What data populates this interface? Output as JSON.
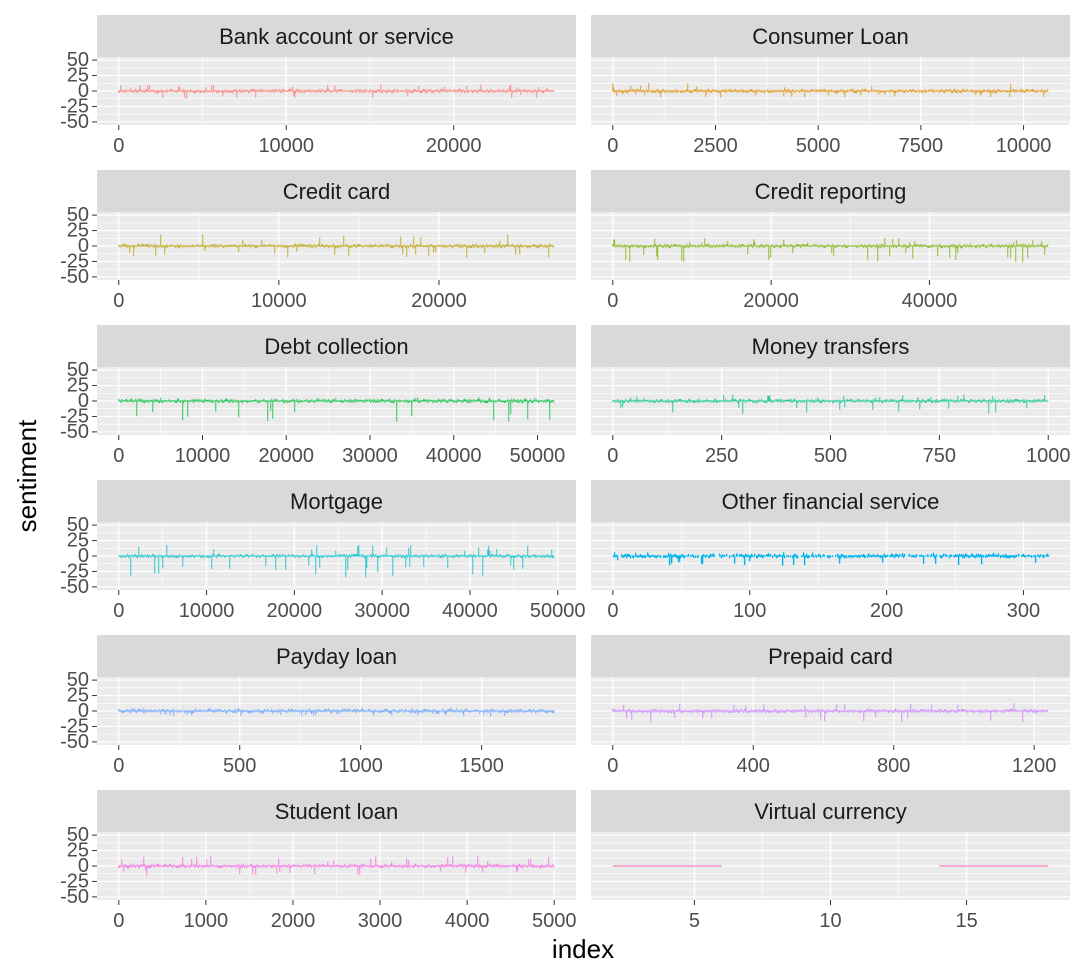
{
  "chart_data": {
    "type": "bar",
    "layout": "facet-wrap",
    "facet_columns": 2,
    "xlabel": "index",
    "ylabel": "sentiment",
    "shared_y_axis": true,
    "ylim": [
      -55,
      55
    ],
    "y_ticks": [
      50,
      25,
      0,
      -25,
      -50
    ],
    "y_tick_labels": [
      "50",
      "25",
      "0",
      "-25",
      "-50"
    ],
    "grid": true,
    "panel_background": "#ebebeb",
    "strip_background": "#d9d9d9",
    "panels": [
      {
        "name": "Bank account or service",
        "color": "#F8766D",
        "xlim": [
          -1300,
          27300
        ],
        "x_ticks": [
          0,
          10000,
          20000
        ],
        "x_tick_labels": [
          "0",
          "10000",
          "20000"
        ],
        "n": 26000,
        "approx_sentiment_range": [
          -12,
          10
        ]
      },
      {
        "name": "Consumer Loan",
        "color": "#DE8C00",
        "xlim": [
          -530,
          11130
        ],
        "x_ticks": [
          0,
          2500,
          5000,
          7500,
          10000
        ],
        "x_tick_labels": [
          "0",
          "2500",
          "5000",
          "7500",
          "10000"
        ],
        "n": 10600,
        "approx_sentiment_range": [
          -10,
          12
        ]
      },
      {
        "name": "Credit card",
        "color": "#B79F00",
        "xlim": [
          -1360,
          28560
        ],
        "x_ticks": [
          0,
          10000,
          20000
        ],
        "x_tick_labels": [
          "0",
          "10000",
          "20000"
        ],
        "n": 27200,
        "approx_sentiment_range": [
          -18,
          18
        ]
      },
      {
        "name": "Credit reporting",
        "color": "#7CAE00",
        "xlim": [
          -2750,
          57750
        ],
        "x_ticks": [
          0,
          20000,
          40000
        ],
        "x_tick_labels": [
          "0",
          "20000",
          "40000"
        ],
        "n": 55000,
        "approx_sentiment_range": [
          -25,
          12
        ]
      },
      {
        "name": "Debt collection",
        "color": "#00BA38",
        "xlim": [
          -2600,
          54600
        ],
        "x_ticks": [
          0,
          10000,
          20000,
          30000,
          40000,
          50000
        ],
        "x_tick_labels": [
          "0",
          "10000",
          "20000",
          "30000",
          "40000",
          "50000"
        ],
        "n": 52000,
        "approx_sentiment_range": [
          -35,
          5
        ]
      },
      {
        "name": "Money transfers",
        "color": "#00C08B",
        "xlim": [
          -50,
          1050
        ],
        "x_ticks": [
          0,
          250,
          500,
          750,
          1000
        ],
        "x_tick_labels": [
          "0",
          "250",
          "500",
          "750",
          "1000"
        ],
        "n": 1000,
        "approx_sentiment_range": [
          -20,
          10
        ]
      },
      {
        "name": "Mortgage",
        "color": "#00BFC4",
        "xlim": [
          -2480,
          52080
        ],
        "x_ticks": [
          0,
          10000,
          20000,
          30000,
          40000,
          50000
        ],
        "x_tick_labels": [
          "0",
          "10000",
          "20000",
          "30000",
          "40000",
          "50000"
        ],
        "n": 49600,
        "approx_sentiment_range": [
          -35,
          18
        ]
      },
      {
        "name": "Other financial service",
        "color": "#00B4F0",
        "xlim": [
          -16,
          334
        ],
        "x_ticks": [
          0,
          100,
          200,
          300
        ],
        "x_tick_labels": [
          "0",
          "100",
          "200",
          "300"
        ],
        "n": 318,
        "approx_sentiment_range": [
          -15,
          5
        ]
      },
      {
        "name": "Payday loan",
        "color": "#619CFF",
        "xlim": [
          -90,
          1890
        ],
        "x_ticks": [
          0,
          500,
          1000,
          1500
        ],
        "x_tick_labels": [
          "0",
          "500",
          "1000",
          "1500"
        ],
        "n": 1800,
        "approx_sentiment_range": [
          -8,
          5
        ]
      },
      {
        "name": "Prepaid card",
        "color": "#C77CFF",
        "xlim": [
          -62,
          1302
        ],
        "x_ticks": [
          0,
          400,
          800,
          1200
        ],
        "x_tick_labels": [
          "0",
          "400",
          "800",
          "1200"
        ],
        "n": 1240,
        "approx_sentiment_range": [
          -20,
          12
        ]
      },
      {
        "name": "Student loan",
        "color": "#F564E3",
        "xlim": [
          -250,
          5250
        ],
        "x_ticks": [
          0,
          1000,
          2000,
          3000,
          4000,
          5000
        ],
        "x_tick_labels": [
          "0",
          "1000",
          "2000",
          "3000",
          "4000",
          "5000"
        ],
        "n": 5000,
        "approx_sentiment_range": [
          -15,
          15
        ]
      },
      {
        "name": "Virtual currency",
        "color": "#FF64B0",
        "xlim": [
          1.2,
          18.8
        ],
        "x_ticks": [
          5,
          10,
          15
        ],
        "x_tick_labels": [
          "5",
          "10",
          "15"
        ],
        "n": 16,
        "bars": [
          {
            "x": [
              2,
              6
            ],
            "value": 0
          },
          {
            "x": [
              14,
              18
            ],
            "value": 0
          }
        ]
      }
    ]
  }
}
